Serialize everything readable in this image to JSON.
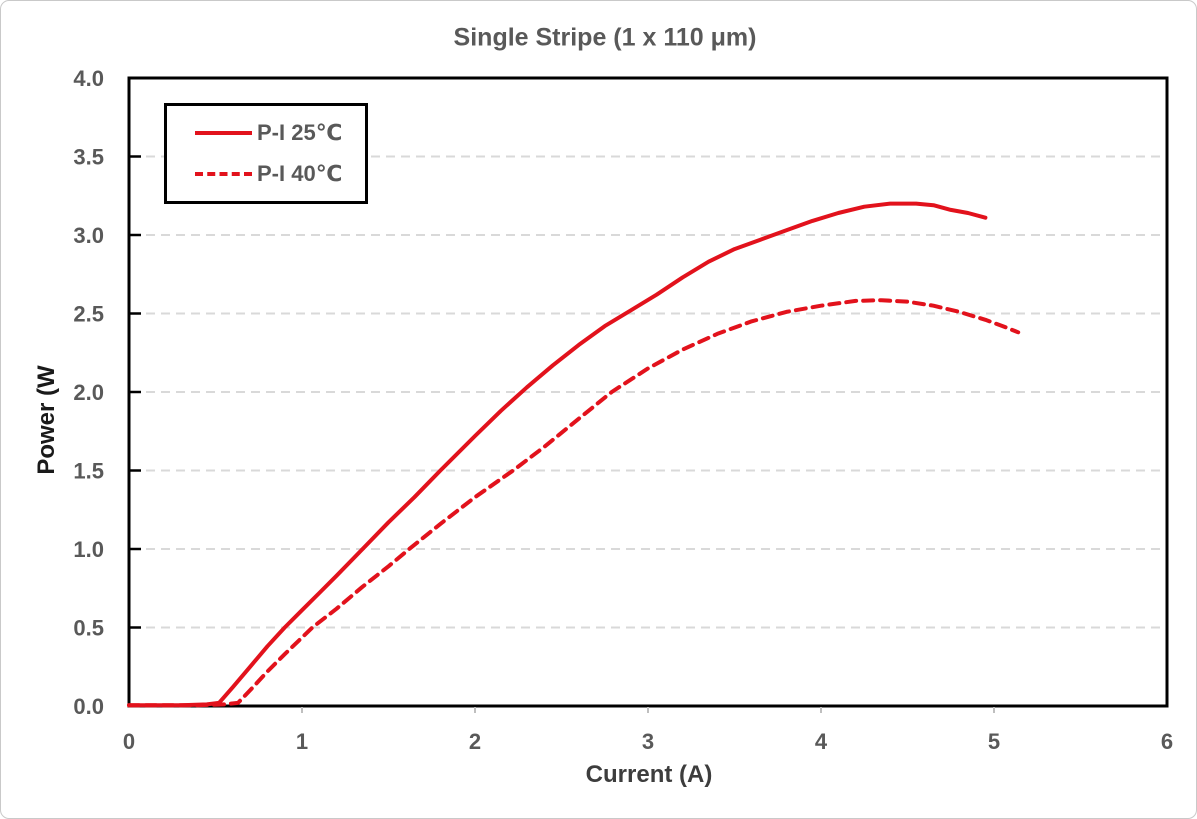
{
  "chart_data": {
    "type": "line",
    "title": "Single Stripe (1 x 110 μm)",
    "xlabel": "Current (A)",
    "ylabel": "Power (W",
    "xlim": [
      0,
      6
    ],
    "ylim": [
      0,
      4
    ],
    "x_ticks": [
      "0",
      "1",
      "2",
      "3",
      "4",
      "5",
      "6"
    ],
    "y_ticks": [
      "0.0",
      "0.5",
      "1.0",
      "1.5",
      "2.0",
      "2.5",
      "3.0",
      "3.5",
      "4.0"
    ],
    "grid": "horizontal dashed major gridlines",
    "legend_position": "top-left inside plot, black border",
    "series": [
      {
        "name": "P-I 25℃",
        "style": "solid",
        "color": "#e2121c",
        "points": [
          [
            0.0,
            0.005
          ],
          [
            0.3,
            0.005
          ],
          [
            0.45,
            0.01
          ],
          [
            0.52,
            0.02
          ],
          [
            0.6,
            0.12
          ],
          [
            0.7,
            0.25
          ],
          [
            0.8,
            0.38
          ],
          [
            0.9,
            0.5
          ],
          [
            1.0,
            0.61
          ],
          [
            1.1,
            0.72
          ],
          [
            1.2,
            0.83
          ],
          [
            1.35,
            1.0
          ],
          [
            1.5,
            1.17
          ],
          [
            1.65,
            1.33
          ],
          [
            1.8,
            1.5
          ],
          [
            2.0,
            1.72
          ],
          [
            2.15,
            1.88
          ],
          [
            2.3,
            2.03
          ],
          [
            2.45,
            2.17
          ],
          [
            2.6,
            2.3
          ],
          [
            2.75,
            2.42
          ],
          [
            2.9,
            2.52
          ],
          [
            3.05,
            2.62
          ],
          [
            3.2,
            2.73
          ],
          [
            3.35,
            2.83
          ],
          [
            3.5,
            2.91
          ],
          [
            3.65,
            2.97
          ],
          [
            3.8,
            3.03
          ],
          [
            3.95,
            3.09
          ],
          [
            4.1,
            3.14
          ],
          [
            4.25,
            3.18
          ],
          [
            4.4,
            3.2
          ],
          [
            4.55,
            3.2
          ],
          [
            4.65,
            3.19
          ],
          [
            4.75,
            3.16
          ],
          [
            4.85,
            3.14
          ],
          [
            4.95,
            3.11
          ]
        ]
      },
      {
        "name": "P-I 40℃",
        "style": "dashed",
        "color": "#e2121c",
        "points": [
          [
            0.0,
            0.005
          ],
          [
            0.4,
            0.005
          ],
          [
            0.55,
            0.01
          ],
          [
            0.63,
            0.02
          ],
          [
            0.7,
            0.1
          ],
          [
            0.8,
            0.22
          ],
          [
            0.9,
            0.33
          ],
          [
            1.06,
            0.5
          ],
          [
            1.2,
            0.62
          ],
          [
            1.35,
            0.76
          ],
          [
            1.5,
            0.89
          ],
          [
            1.62,
            1.0
          ],
          [
            1.8,
            1.16
          ],
          [
            2.0,
            1.33
          ],
          [
            2.22,
            1.5
          ],
          [
            2.4,
            1.65
          ],
          [
            2.6,
            1.83
          ],
          [
            2.79,
            2.0
          ],
          [
            3.0,
            2.15
          ],
          [
            3.2,
            2.27
          ],
          [
            3.4,
            2.37
          ],
          [
            3.6,
            2.45
          ],
          [
            3.8,
            2.51
          ],
          [
            4.0,
            2.55
          ],
          [
            4.2,
            2.58
          ],
          [
            4.35,
            2.585
          ],
          [
            4.5,
            2.575
          ],
          [
            4.65,
            2.55
          ],
          [
            4.8,
            2.51
          ],
          [
            4.95,
            2.46
          ],
          [
            5.05,
            2.42
          ],
          [
            5.14,
            2.38
          ]
        ]
      }
    ],
    "colors": {
      "series_red": "#e2121c",
      "gridline": "#d9d9d9",
      "axis_frame": "#000000",
      "tick_label": "#595959",
      "axis_title": "#3d3d3d",
      "title": "#595959"
    }
  }
}
